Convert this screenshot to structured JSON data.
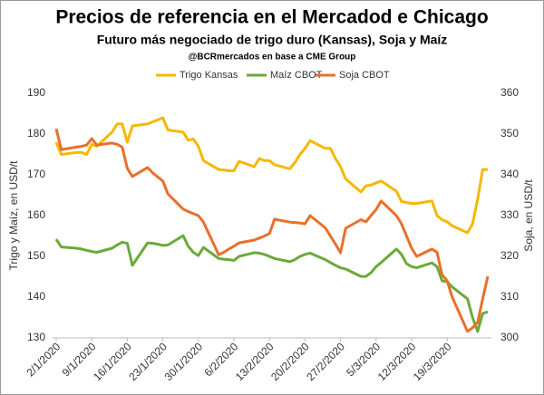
{
  "chart_data": {
    "type": "line",
    "title": "Precios de referencia en el Mercadod e Chicago",
    "subtitle": "Futuro más negociado de trigo duro (Kansas), Soja y Maíz",
    "source": "@BCRmercados en base a CME Group",
    "ylabel": "Trigo y Maíz, en USD/t",
    "y2label": "Soja, en USD/t",
    "x": [
      "2/1/2020",
      "3/1/2020",
      "6/1/2020",
      "7/1/2020",
      "8/1/2020",
      "9/1/2020",
      "10/1/2020",
      "13/1/2020",
      "14/1/2020",
      "15/1/2020",
      "16/1/2020",
      "17/1/2020",
      "20/1/2020",
      "21/1/2020",
      "22/1/2020",
      "23/1/2020",
      "24/1/2020",
      "27/1/2020",
      "28/1/2020",
      "29/1/2020",
      "30/1/2020",
      "31/1/2020",
      "3/2/2020",
      "4/2/2020",
      "5/2/2020",
      "6/2/2020",
      "7/2/2020",
      "10/2/2020",
      "11/2/2020",
      "12/2/2020",
      "13/2/2020",
      "14/2/2020",
      "17/2/2020",
      "18/2/2020",
      "19/2/2020",
      "20/2/2020",
      "21/2/2020",
      "24/2/2020",
      "25/2/2020",
      "26/2/2020",
      "27/2/2020",
      "28/2/2020",
      "2/3/2020",
      "3/3/2020",
      "4/3/2020",
      "5/3/2020",
      "6/3/2020",
      "9/3/2020",
      "10/3/2020",
      "11/3/2020",
      "12/3/2020",
      "13/3/2020",
      "16/3/2020",
      "17/3/2020",
      "18/3/2020",
      "19/3/2020",
      "20/3/2020",
      "23/3/2020",
      "24/3/2020",
      "25/3/2020",
      "26/3/2020",
      "27/3/2020"
    ],
    "xlim": [
      "2/1/2020",
      "27/3/2020"
    ],
    "xticks": [
      "2/1/2020",
      "9/1/2020",
      "16/1/2020",
      "23/1/2020",
      "30/1/2020",
      "6/2/2020",
      "13/2/2020",
      "20/2/2020",
      "27/2/2020",
      "5/3/2020",
      "12/3/2020",
      "19/3/2020"
    ],
    "ylim": [
      130,
      190
    ],
    "yticks": [
      130,
      140,
      150,
      160,
      170,
      180,
      190
    ],
    "y2lim": [
      300,
      360
    ],
    "y2ticks": [
      300,
      310,
      320,
      330,
      340,
      350,
      360
    ],
    "series": [
      {
        "name": "Trigo Kansas",
        "color": "#f5b800",
        "values": [
          178,
          175,
          175.5,
          175.5,
          175,
          177.5,
          177,
          180.5,
          182.5,
          182.5,
          178,
          182,
          182.5,
          183,
          183.5,
          184,
          181,
          180.5,
          178.5,
          178.8,
          177,
          173.5,
          171.3,
          171.2,
          171,
          171,
          173.3,
          172,
          174,
          173.5,
          173.5,
          172.5,
          171.5,
          173,
          175,
          176.5,
          178.4,
          176.5,
          176.5,
          174,
          172,
          169,
          165.8,
          167.3,
          167.5,
          168,
          168.5,
          166,
          163.5,
          163.2,
          163,
          163,
          163.6,
          160,
          159,
          158.5,
          157.5,
          155.8,
          158,
          164,
          171.3,
          171.3
        ]
      },
      {
        "name": "Maíz CBOT",
        "color": "#6aaa3a",
        "values": [
          154.2,
          152.3,
          152,
          151.8,
          151.5,
          151.2,
          151,
          152,
          152.8,
          153.5,
          153.2,
          147.8,
          153.3,
          153.2,
          153,
          152.7,
          152.8,
          155.1,
          152.5,
          151,
          150.2,
          152.2,
          149.5,
          149.3,
          149.2,
          149,
          150,
          150.9,
          150.8,
          150.5,
          150,
          149.5,
          148.7,
          149.2,
          150,
          150.5,
          150.8,
          149.2,
          148.5,
          147.8,
          147.2,
          146.9,
          145.1,
          145.1,
          146,
          147.5,
          148.5,
          151.8,
          150.5,
          148.2,
          147.5,
          147.2,
          148.4,
          147.5,
          144,
          143.8,
          142.5,
          139.6,
          135,
          131.6,
          136,
          136.4
        ]
      },
      {
        "name": "Soja CBOT",
        "color": "#e8702a",
        "axis": "y2",
        "values": [
          351.3,
          346.2,
          346.8,
          347,
          347.3,
          348.9,
          347.3,
          347.8,
          347.5,
          346.8,
          341.6,
          339.6,
          341.8,
          340.5,
          339.5,
          338.5,
          335.3,
          331.6,
          331,
          330.5,
          330,
          328.4,
          320.4,
          321,
          321.8,
          322.5,
          323.3,
          324,
          324.5,
          325,
          325.6,
          329.1,
          328.4,
          328.3,
          328.2,
          328,
          330,
          327,
          325,
          323,
          320.9,
          326.9,
          329,
          328.5,
          330,
          331.5,
          333.6,
          330,
          328,
          325,
          322,
          320,
          321.8,
          321,
          315.5,
          314,
          310,
          301.6,
          302.5,
          303.8,
          309.6,
          315.1
        ]
      }
    ]
  }
}
